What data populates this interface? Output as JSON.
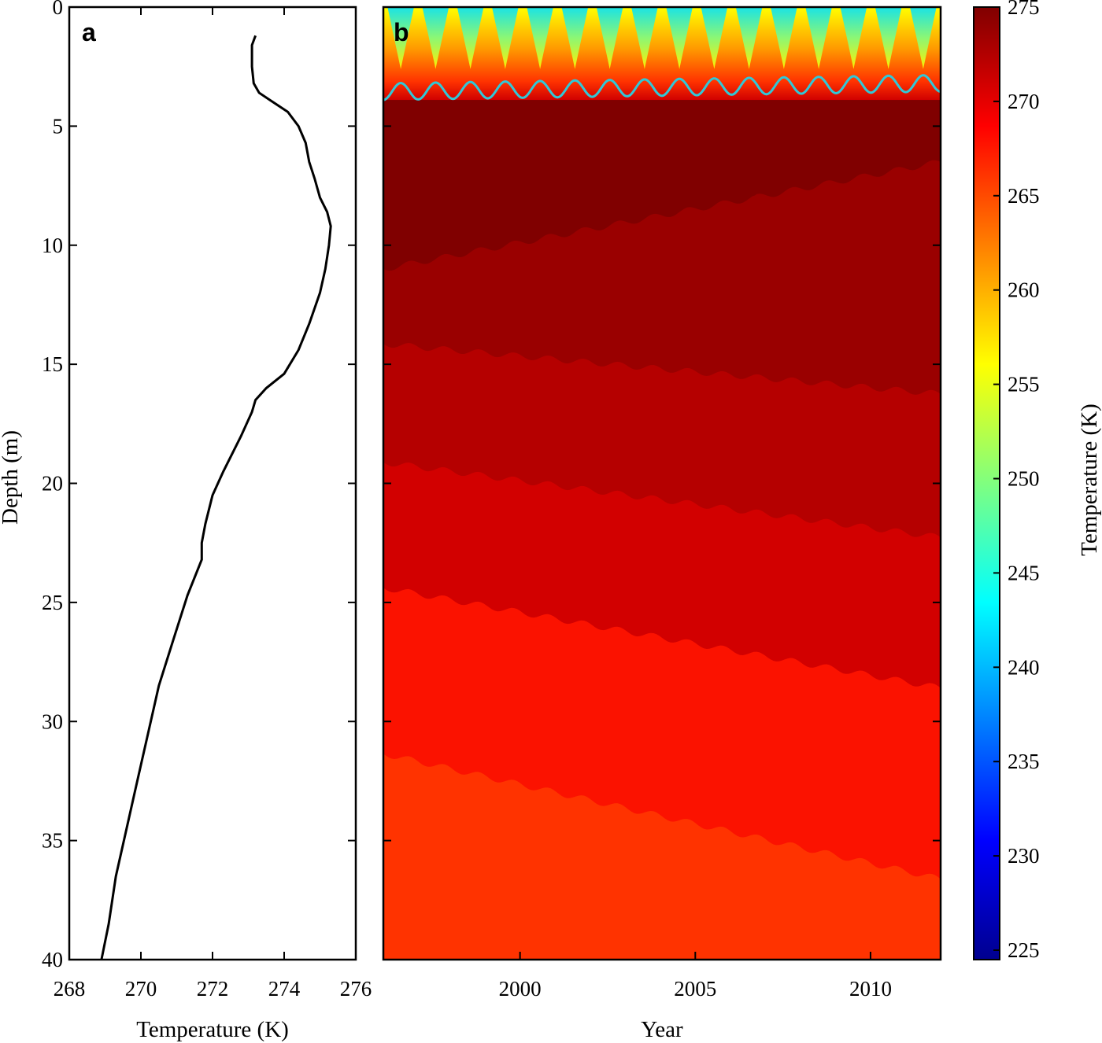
{
  "chart_data": [
    {
      "panel": "a",
      "type": "line",
      "xlabel": "Temperature (K)",
      "ylabel": "Depth (m)",
      "xlim": [
        268,
        276
      ],
      "ylim": [
        0,
        40
      ],
      "y_reversed": true,
      "xticks": [
        "268",
        "270",
        "272",
        "274",
        "276"
      ],
      "yticks": [
        "0",
        "5",
        "10",
        "15",
        "20",
        "25",
        "30",
        "35",
        "40"
      ],
      "line_color": "#000000",
      "series": [
        {
          "x": [
            273.2,
            273.1,
            273.1,
            273.15,
            273.3,
            273.6,
            274.1,
            274.4,
            274.6,
            274.7,
            274.85,
            275.0,
            275.2,
            275.3,
            275.25,
            275.15,
            275.0,
            274.7,
            274.4,
            274.0,
            273.5,
            273.2,
            273.1,
            272.8,
            272.3,
            272.0,
            271.8,
            271.7,
            271.7,
            271.3,
            270.9,
            270.5,
            270.2,
            269.9,
            269.6,
            269.3,
            269.1,
            268.9
          ],
          "y": [
            1.2,
            1.6,
            2.5,
            3.2,
            3.6,
            3.9,
            4.4,
            5.0,
            5.7,
            6.5,
            7.2,
            8.0,
            8.6,
            9.2,
            10.0,
            11.0,
            12.0,
            13.3,
            14.4,
            15.4,
            16.0,
            16.5,
            17.0,
            18.0,
            19.5,
            20.5,
            21.7,
            22.5,
            23.2,
            24.7,
            26.6,
            28.5,
            30.5,
            32.5,
            34.5,
            36.5,
            38.5,
            40.0
          ]
        }
      ]
    },
    {
      "panel": "b",
      "type": "heatmap",
      "xlabel": "Year",
      "ylabel": "",
      "xlim": [
        1996.1,
        2012.0
      ],
      "ylim": [
        0,
        40
      ],
      "y_reversed": true,
      "xticks": [
        "2000",
        "2005",
        "2010"
      ],
      "colorbar": {
        "label": "Temperature (K)",
        "range": [
          224.5,
          275
        ],
        "ticks": [
          "225",
          "230",
          "235",
          "240",
          "245",
          "250",
          "255",
          "260",
          "265",
          "270",
          "275"
        ],
        "colormap": "jet"
      },
      "contour_line_color": "#30c8d8",
      "contour_line_depth_range": [
        2.9,
        4.0
      ],
      "seasonal_periods": 16,
      "bands": [
        {
          "temperature": 275.0,
          "depth": [
            4.7,
            11.0
          ],
          "color": "#800000"
        },
        {
          "temperature": 274.5,
          "depth": [
            4.3,
            14.2
          ],
          "color": "#9a0000"
        },
        {
          "temperature": 273.5,
          "depth": [
            14.2,
            19.2
          ],
          "color": "#b50000"
        },
        {
          "temperature": 272.5,
          "depth": [
            19.2,
            24.5
          ],
          "color": "#d20000"
        },
        {
          "temperature": 271.5,
          "depth": [
            24.5,
            31.5
          ],
          "color": "#fb1200"
        },
        {
          "temperature": 270.5,
          "depth": [
            31.5,
            40.0
          ],
          "color": "#ff3300"
        }
      ]
    }
  ]
}
